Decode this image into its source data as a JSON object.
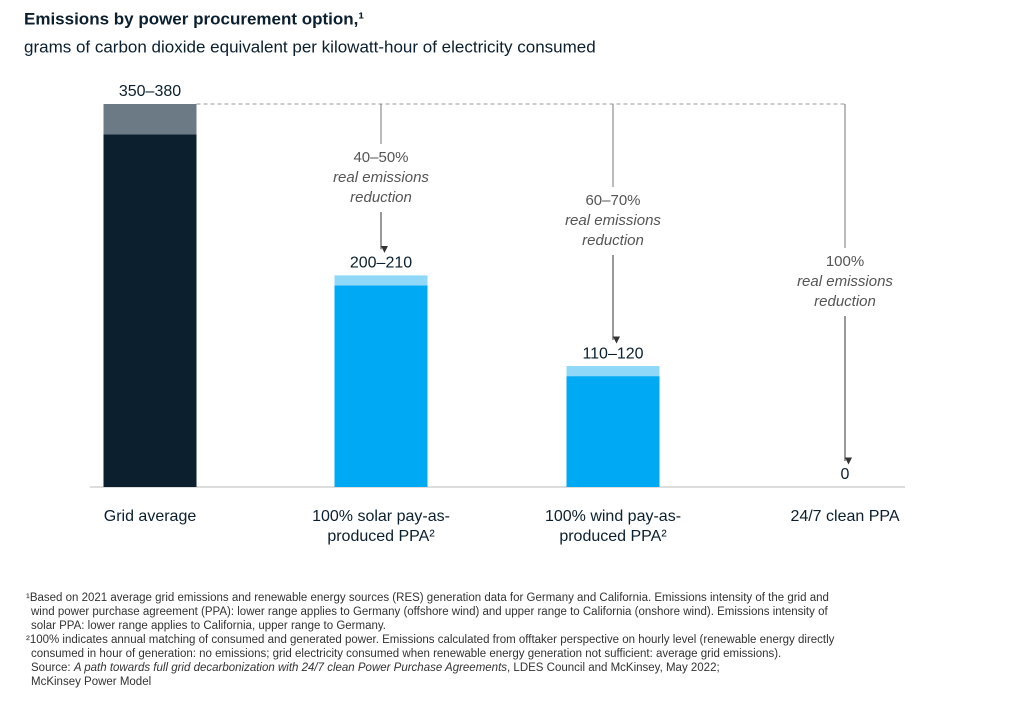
{
  "chart_data": {
    "type": "range-bar",
    "title": "Emissions by power procurement option,¹",
    "subtitle": "grams of carbon dioxide equivalent per kilowatt-hour of electricity consumed",
    "categories": [
      "Grid average",
      "100% solar pay-as-produced PPA²",
      "100% wind pay-as-produced PPA²",
      "24/7 clean PPA"
    ],
    "ylim": [
      0,
      380
    ],
    "series": [
      {
        "name": "low",
        "colors": [
          "#0b1f2e",
          "#00a9f4",
          "#00a9f4",
          "#00a9f4"
        ],
        "values": [
          350,
          200,
          110,
          0
        ],
        "value_labels": [
          "350–380",
          "200–210",
          "110–120",
          "0"
        ]
      },
      {
        "name": "range",
        "colors": [
          "#6b7a85",
          "#8fd8f8",
          "#8fd8f8",
          "#8fd8f8"
        ],
        "values": [
          30,
          10,
          10,
          0
        ]
      }
    ],
    "annotations": [
      {
        "category": 1,
        "label": "40–50%",
        "note": [
          "real emissions",
          "reduction"
        ]
      },
      {
        "category": 2,
        "label": "60–70%",
        "note": [
          "real emissions",
          "reduction"
        ]
      },
      {
        "category": 3,
        "label": "100%",
        "note": [
          "real emissions",
          "reduction"
        ]
      }
    ],
    "footnotes": [
      "¹Based on 2021 average grid emissions and renewable energy sources (RES) generation data for Germany and California. Emissions intensity of the grid and",
      "wind power purchase agreement (PPA): lower range applies to Germany (offshore wind) and upper range to California (onshore wind). Emissions intensity of",
      "solar PPA: lower range applies to California, upper range to Germany.",
      "²100% indicates annual matching of consumed and generated power. Emissions calculated from offtaker perspective on hourly level (renewable energy directly",
      "consumed in hour of generation: no emissions; grid electricity consumed when renewable energy generation not sufficient: average grid emissions)."
    ],
    "source": {
      "prefix": "Source: ",
      "title": "A path towards full grid decarbonization with 24/7 clean Power Purchase Agreements",
      "rest": ", LDES Council and McKinsey, May 2022;",
      "line2": "McKinsey Power Model"
    }
  }
}
